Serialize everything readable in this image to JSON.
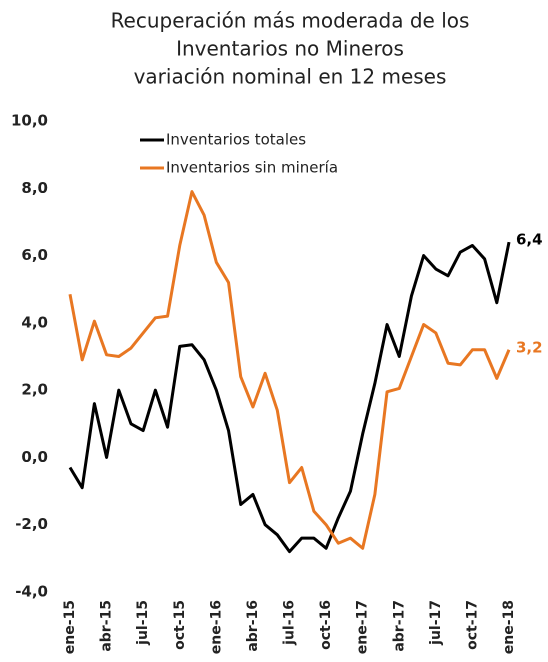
{
  "chart_data": {
    "type": "line",
    "title": [
      "Recuperación más moderada de los",
      "Inventarios no Mineros"
    ],
    "subtitle": "variación nominal en 12 meses",
    "categories": [
      "ene-15",
      null,
      null,
      "abr-15",
      null,
      null,
      "jul-15",
      null,
      null,
      "oct-15",
      null,
      null,
      "ene-16",
      null,
      null,
      "abr-16",
      null,
      null,
      "jul-16",
      null,
      null,
      "oct-16",
      null,
      null,
      "ene-17",
      null,
      null,
      "abr-17",
      null,
      null,
      "jul-17",
      null,
      null,
      "oct-17",
      null,
      null,
      "ene-18"
    ],
    "series": [
      {
        "name": "Inventarios totales",
        "color": "#000000",
        "values": [
          -0.3,
          -0.9,
          1.6,
          0.0,
          2.0,
          1.0,
          0.8,
          2.0,
          0.9,
          3.3,
          3.35,
          2.9,
          2.0,
          0.8,
          -1.4,
          -1.1,
          -2.0,
          -2.3,
          -2.8,
          -2.4,
          -2.4,
          -2.7,
          -1.8,
          -1.0,
          0.7,
          2.2,
          3.95,
          3.0,
          4.8,
          6.0,
          5.6,
          5.4,
          6.1,
          6.3,
          5.9,
          4.6,
          6.4
        ],
        "value_labels": [
          null,
          null,
          null,
          null,
          null,
          null,
          null,
          null,
          null,
          null,
          null,
          null,
          null,
          null,
          null,
          null,
          null,
          null,
          null,
          null,
          null,
          null,
          null,
          null,
          null,
          null,
          null,
          null,
          null,
          null,
          null,
          null,
          null,
          null,
          null,
          null,
          "6,4"
        ]
      },
      {
        "name": "Inventarios sin minería",
        "color": "#e87722",
        "values": [
          4.85,
          2.9,
          4.05,
          3.05,
          3.0,
          3.25,
          3.7,
          4.15,
          4.2,
          6.3,
          7.9,
          7.2,
          5.8,
          5.2,
          2.4,
          1.5,
          2.5,
          1.4,
          -0.75,
          -0.3,
          -1.6,
          -2.0,
          -2.55,
          -2.4,
          -2.7,
          -1.1,
          1.95,
          2.05,
          3.0,
          3.95,
          3.7,
          2.8,
          2.75,
          3.2,
          3.2,
          2.35,
          3.2
        ],
        "value_labels": [
          null,
          null,
          null,
          null,
          null,
          null,
          null,
          null,
          null,
          null,
          null,
          null,
          null,
          null,
          null,
          null,
          null,
          null,
          null,
          null,
          null,
          null,
          null,
          null,
          null,
          null,
          null,
          null,
          null,
          null,
          null,
          null,
          null,
          null,
          null,
          null,
          "3,2"
        ]
      }
    ],
    "ylim": [
      -4,
      10
    ],
    "yticks": [
      {
        "value": -4,
        "label": "-4,0"
      },
      {
        "value": -2,
        "label": "-2,0"
      },
      {
        "value": 0,
        "label": "0,0"
      },
      {
        "value": 2,
        "label": "2,0"
      },
      {
        "value": 4,
        "label": "4,0"
      },
      {
        "value": 6,
        "label": "6,0"
      },
      {
        "value": 8,
        "label": "8,0"
      },
      {
        "value": 10,
        "label": "10,0"
      }
    ],
    "grid": false,
    "legend": "top-left"
  }
}
